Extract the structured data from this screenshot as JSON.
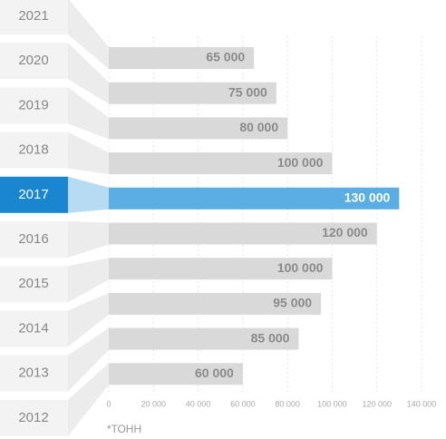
{
  "chart_data": {
    "type": "bar",
    "orientation": "horizontal",
    "categories": [
      "2021",
      "2020",
      "2019",
      "2018",
      "2017",
      "2016",
      "2015",
      "2014",
      "2013",
      "2012"
    ],
    "values": [
      65000,
      75000,
      80000,
      100000,
      130000,
      120000,
      100000,
      95000,
      85000,
      60000
    ],
    "value_labels": [
      "65 000",
      "75 000",
      "80 000",
      "100 000",
      "130 000",
      "120 000",
      "100 000",
      "95 000",
      "85 000",
      "60 000"
    ],
    "color": "#d9d9d9",
    "highlight": "2017",
    "highlight_color": "#5aaee3",
    "xlim": [
      0,
      140000
    ],
    "xticks": [
      0,
      {
        "value": 20000,
        "label": "20 000"
      },
      {
        "value": 40000,
        "label": "40 000"
      },
      {
        "value": 60000,
        "label": "60 000"
      },
      {
        "value": 80000,
        "label": "80 000"
      },
      {
        "value": 100000,
        "label": "100 000"
      },
      {
        "value": 120000,
        "label": "120 000"
      },
      {
        "value": 140000,
        "label": "140 000"
      }
    ],
    "grid": true,
    "note": "*ТОНН"
  }
}
